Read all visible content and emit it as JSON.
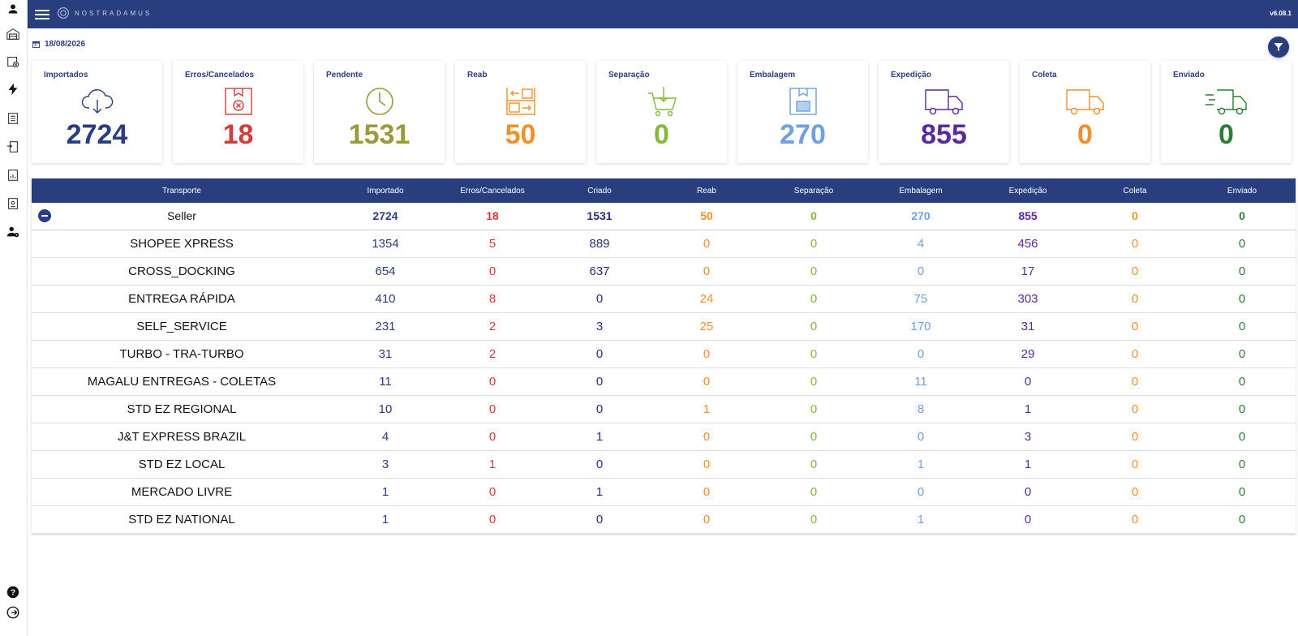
{
  "app": {
    "logo_text": "NOSTRADAMUS",
    "version": "v6.08.1"
  },
  "date": "18/08/2026",
  "sidebar": {
    "icons": [
      "user-icon",
      "warehouse-icon",
      "package-cancel-icon",
      "lightning-icon",
      "document-list-icon",
      "document-transfer-icon",
      "report-chart-icon",
      "report-document-icon",
      "user-settings-icon",
      "help-icon",
      "logout-icon"
    ]
  },
  "cards": [
    {
      "title": "Importados",
      "value": "2724",
      "color": "#293e7f",
      "icon": "cloud-download-icon"
    },
    {
      "title": "Erros/Cancelados",
      "value": "18",
      "color": "#d03c3c",
      "icon": "cancelled-box-icon"
    },
    {
      "title": "Pendente",
      "value": "1531",
      "color": "#9a9a3a",
      "icon": "clock-icon"
    },
    {
      "title": "Reab",
      "value": "50",
      "color": "#f0902a",
      "icon": "shelves-icon"
    },
    {
      "title": "Separação",
      "value": "0",
      "color": "#86b83a",
      "icon": "cart-icon"
    },
    {
      "title": "Embalagem",
      "value": "270",
      "color": "#6fa0e0",
      "icon": "box-icon"
    },
    {
      "title": "Expedição",
      "value": "855",
      "color": "#5a2a9a",
      "icon": "truck-icon"
    },
    {
      "title": "Coleta",
      "value": "0",
      "color": "#f0902a",
      "icon": "truck-icon"
    },
    {
      "title": "Enviado",
      "value": "0",
      "color": "#2e7d32",
      "icon": "fast-truck-icon"
    }
  ],
  "table": {
    "headers": [
      "Transporte",
      "Importado",
      "Erros/Cancelados",
      "Criado",
      "Reab",
      "Separação",
      "Embalagem",
      "Expedição",
      "Coleta",
      "Enviado"
    ],
    "summary": [
      "Seller",
      "2724",
      "18",
      "1531",
      "50",
      "0",
      "270",
      "855",
      "0",
      "0"
    ],
    "rows": [
      [
        "SHOPEE XPRESS",
        "1354",
        "5",
        "889",
        "0",
        "0",
        "4",
        "456",
        "0",
        "0"
      ],
      [
        "CROSS_DOCKING",
        "654",
        "0",
        "637",
        "0",
        "0",
        "0",
        "17",
        "0",
        "0"
      ],
      [
        "ENTREGA RÁPIDA",
        "410",
        "8",
        "0",
        "24",
        "0",
        "75",
        "303",
        "0",
        "0"
      ],
      [
        "SELF_SERVICE",
        "231",
        "2",
        "3",
        "25",
        "0",
        "170",
        "31",
        "0",
        "0"
      ],
      [
        "TURBO - TRA-TURBO",
        "31",
        "2",
        "0",
        "0",
        "0",
        "0",
        "29",
        "0",
        "0"
      ],
      [
        "MAGALU ENTREGAS - COLETAS",
        "11",
        "0",
        "0",
        "0",
        "0",
        "11",
        "0",
        "0",
        "0"
      ],
      [
        "STD EZ REGIONAL",
        "10",
        "0",
        "0",
        "1",
        "0",
        "8",
        "1",
        "0",
        "0"
      ],
      [
        "J&T EXPRESS BRAZIL",
        "4",
        "0",
        "1",
        "0",
        "0",
        "0",
        "3",
        "0",
        "0"
      ],
      [
        "STD EZ LOCAL",
        "3",
        "1",
        "0",
        "0",
        "0",
        "1",
        "1",
        "0",
        "0"
      ],
      [
        "MERCADO LIVRE",
        "1",
        "0",
        "1",
        "0",
        "0",
        "0",
        "0",
        "0",
        "0"
      ],
      [
        "STD EZ NATIONAL",
        "1",
        "0",
        "0",
        "0",
        "0",
        "1",
        "0",
        "0",
        "0"
      ]
    ]
  }
}
